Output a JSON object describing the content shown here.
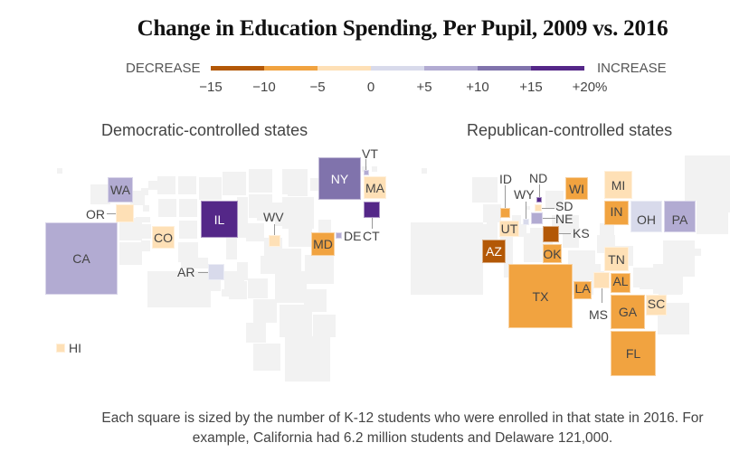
{
  "chart_data": {
    "type": "heatmap",
    "subtype": "square-cartogram",
    "title": "Change in Education Spending, Per Pupil, 2009 vs. 2016",
    "legend": {
      "low_label": "DECREASE",
      "high_label": "INCREASE",
      "ticks": [
        "−15",
        "−10",
        "−5",
        "0",
        "+5",
        "+10",
        "+15",
        "+20%"
      ],
      "bins": [
        {
          "range": [
            -15,
            -10
          ],
          "color": "#b35806"
        },
        {
          "range": [
            -10,
            -5
          ],
          "color": "#f1a340"
        },
        {
          "range": [
            -5,
            0
          ],
          "color": "#fee0b6"
        },
        {
          "range": [
            0,
            5
          ],
          "color": "#d8daeb"
        },
        {
          "range": [
            5,
            10
          ],
          "color": "#b2abd2"
        },
        {
          "range": [
            10,
            15
          ],
          "color": "#8073ac"
        },
        {
          "range": [
            15,
            20
          ],
          "color": "#542788"
        }
      ]
    },
    "panels": [
      {
        "title": "Democratic-controlled states",
        "states": [
          {
            "abbr": "WA",
            "bin": 4
          },
          {
            "abbr": "OR",
            "bin": 2
          },
          {
            "abbr": "CA",
            "bin": 4
          },
          {
            "abbr": "CO",
            "bin": 2
          },
          {
            "abbr": "IL",
            "bin": 6
          },
          {
            "abbr": "AR",
            "bin": 3
          },
          {
            "abbr": "WV",
            "bin": 2
          },
          {
            "abbr": "NY",
            "bin": 5
          },
          {
            "abbr": "VT",
            "bin": 4
          },
          {
            "abbr": "MA",
            "bin": 2
          },
          {
            "abbr": "CT",
            "bin": 6
          },
          {
            "abbr": "DE",
            "bin": 4
          },
          {
            "abbr": "MD",
            "bin": 1
          },
          {
            "abbr": "HI",
            "bin": 2
          }
        ]
      },
      {
        "title": "Republican-controlled states",
        "states": [
          {
            "abbr": "ID",
            "bin": 1
          },
          {
            "abbr": "UT",
            "bin": 2
          },
          {
            "abbr": "AZ",
            "bin": 0
          },
          {
            "abbr": "WY",
            "bin": 3
          },
          {
            "abbr": "ND",
            "bin": 6
          },
          {
            "abbr": "SD",
            "bin": 2
          },
          {
            "abbr": "NE",
            "bin": 4
          },
          {
            "abbr": "KS",
            "bin": 0
          },
          {
            "abbr": "OK",
            "bin": 1
          },
          {
            "abbr": "TX",
            "bin": 1
          },
          {
            "abbr": "WI",
            "bin": 1
          },
          {
            "abbr": "MI",
            "bin": 2
          },
          {
            "abbr": "IN",
            "bin": 1
          },
          {
            "abbr": "OH",
            "bin": 3
          },
          {
            "abbr": "PA",
            "bin": 4
          },
          {
            "abbr": "TN",
            "bin": 2
          },
          {
            "abbr": "AL",
            "bin": 1
          },
          {
            "abbr": "LA",
            "bin": 1
          },
          {
            "abbr": "MS",
            "bin": 2
          },
          {
            "abbr": "GA",
            "bin": 1
          },
          {
            "abbr": "SC",
            "bin": 2
          },
          {
            "abbr": "FL",
            "bin": 1
          }
        ]
      }
    ],
    "note": "Each square is sized by the number of K-12 students who were enrolled in that state in 2016. For example, California had 6.2 million students and Delaware 121,000."
  }
}
